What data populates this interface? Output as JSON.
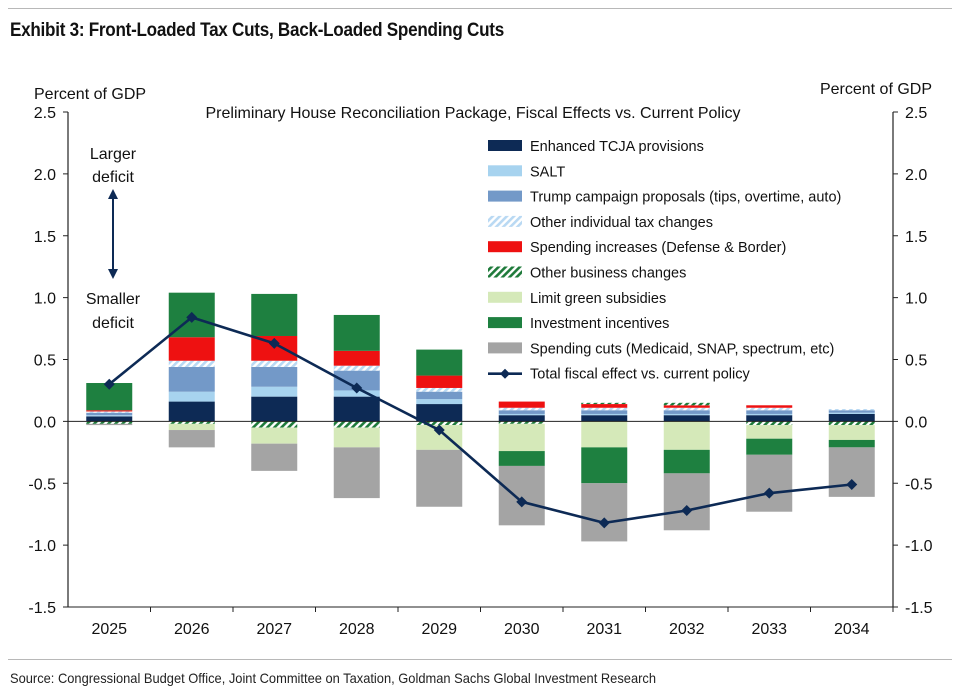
{
  "title": "Exhibit 3: Front-Loaded Tax Cuts, Back-Loaded Spending Cuts",
  "source": "Source: Congressional Budget Office, Joint Committee on Taxation, Goldman Sachs Global Investment Research",
  "chart_data": {
    "type": "bar",
    "stacked": true,
    "subtitle": "Preliminary House Reconciliation Package, Fiscal Effects vs. Current Policy",
    "ylabel_left": "Percent of GDP",
    "ylabel_right": "Percent of GDP",
    "ylim": [
      -1.5,
      2.5
    ],
    "yticks": [
      "2.5",
      "2.0",
      "1.5",
      "1.0",
      "0.5",
      "0.0",
      "-0.5",
      "-1.0",
      "-1.5"
    ],
    "grid": false,
    "legend_position": "top-right",
    "annotations": {
      "top": [
        "Larger",
        "deficit"
      ],
      "bottom": [
        "Smaller",
        "deficit"
      ]
    },
    "categories": [
      "2025",
      "2026",
      "2027",
      "2028",
      "2029",
      "2030",
      "2031",
      "2032",
      "2033",
      "2034"
    ],
    "series": [
      {
        "name": "Enhanced TCJA provisions",
        "color": "#0d2a55",
        "pattern": "solid",
        "values": [
          0.04,
          0.16,
          0.2,
          0.2,
          0.14,
          0.05,
          0.05,
          0.05,
          0.05,
          0.06
        ]
      },
      {
        "name": "SALT",
        "color": "#a7d3ef",
        "pattern": "solid",
        "values": [
          0.01,
          0.08,
          0.08,
          0.05,
          0.04,
          0.01,
          0.01,
          0.01,
          0.01,
          0.01
        ]
      },
      {
        "name": "Trump campaign proposals (tips, overtime, auto)",
        "color": "#7399c8",
        "pattern": "solid",
        "values": [
          0.02,
          0.2,
          0.16,
          0.16,
          0.06,
          0.03,
          0.03,
          0.03,
          0.03,
          0.02
        ]
      },
      {
        "name": "Other individual tax changes",
        "color": "#b9d9f3",
        "pattern": "hatch",
        "values": [
          0.01,
          0.05,
          0.05,
          0.04,
          0.03,
          0.02,
          0.02,
          0.02,
          0.02,
          0.01
        ]
      },
      {
        "name": "Spending increases (Defense & Border)",
        "color": "#ee1111",
        "pattern": "solid",
        "values": [
          0.01,
          0.19,
          0.2,
          0.12,
          0.1,
          0.05,
          0.03,
          0.02,
          0.02,
          0.0
        ]
      },
      {
        "name": "Other business changes",
        "color": "#1e7a3a",
        "pattern": "hatch",
        "values": [
          -0.02,
          -0.02,
          -0.05,
          -0.05,
          -0.03,
          -0.02,
          0.01,
          0.02,
          -0.03,
          -0.03
        ]
      },
      {
        "name": "Limit green subsidies",
        "color": "#d5e9b9",
        "pattern": "solid",
        "values": [
          0.0,
          -0.05,
          -0.13,
          -0.16,
          -0.2,
          -0.22,
          -0.21,
          -0.23,
          -0.11,
          -0.12
        ]
      },
      {
        "name": "Investment incentives",
        "color": "#1e8040",
        "pattern": "solid",
        "values": [
          0.22,
          0.36,
          0.34,
          0.29,
          0.21,
          -0.12,
          -0.29,
          -0.19,
          -0.13,
          -0.06
        ]
      },
      {
        "name": "Spending cuts (Medicaid, SNAP, spectrum, etc)",
        "color": "#a4a4a4",
        "pattern": "solid",
        "values": [
          -0.01,
          -0.14,
          -0.22,
          -0.41,
          -0.46,
          -0.48,
          -0.47,
          -0.46,
          -0.46,
          -0.4
        ]
      }
    ],
    "line": {
      "name": "Total fiscal effect vs. current policy",
      "color": "#0d2a55",
      "values": [
        0.3,
        0.84,
        0.63,
        0.27,
        -0.07,
        -0.65,
        -0.82,
        -0.72,
        -0.58,
        -0.51
      ]
    }
  }
}
